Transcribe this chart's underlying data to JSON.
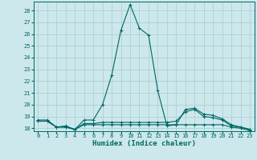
{
  "xlabel": "Humidex (Indice chaleur)",
  "background_color": "#cce8ec",
  "grid_color": "#aacccc",
  "line_color": "#006666",
  "xlim": [
    -0.5,
    23.5
  ],
  "ylim": [
    17.75,
    28.75
  ],
  "yticks": [
    18,
    19,
    20,
    21,
    22,
    23,
    24,
    25,
    26,
    27,
    28
  ],
  "xticks": [
    0,
    1,
    2,
    3,
    4,
    5,
    6,
    7,
    8,
    9,
    10,
    11,
    12,
    13,
    14,
    15,
    16,
    17,
    18,
    19,
    20,
    21,
    22,
    23
  ],
  "series": [
    {
      "x": [
        0,
        1,
        2,
        3,
        4,
        5,
        6,
        7,
        8,
        9,
        10,
        11,
        12,
        13,
        14,
        15,
        16,
        17,
        18,
        19,
        20,
        21,
        22,
        23
      ],
      "y": [
        18.7,
        18.7,
        18.1,
        18.2,
        17.9,
        18.7,
        18.7,
        20.0,
        22.5,
        26.3,
        28.5,
        26.5,
        25.9,
        21.2,
        18.2,
        18.3,
        19.6,
        19.7,
        19.2,
        19.1,
        18.8,
        18.3,
        18.1,
        17.9
      ]
    },
    {
      "x": [
        0,
        1,
        2,
        3,
        4,
        5,
        6,
        7,
        8,
        9,
        10,
        11,
        12,
        13,
        14,
        15,
        16,
        17,
        18,
        19,
        20,
        21,
        22,
        23
      ],
      "y": [
        18.6,
        18.6,
        18.1,
        18.1,
        17.9,
        18.4,
        18.4,
        18.5,
        18.5,
        18.5,
        18.5,
        18.5,
        18.5,
        18.5,
        18.5,
        18.6,
        19.4,
        19.6,
        19.0,
        18.9,
        18.7,
        18.2,
        18.1,
        17.9
      ]
    },
    {
      "x": [
        0,
        1,
        2,
        3,
        4,
        5,
        6,
        7,
        8,
        9,
        10,
        11,
        12,
        13,
        14,
        15,
        16,
        17,
        18,
        19,
        20,
        21,
        22,
        23
      ],
      "y": [
        18.6,
        18.6,
        18.1,
        18.1,
        17.9,
        18.3,
        18.3,
        18.3,
        18.3,
        18.3,
        18.3,
        18.3,
        18.3,
        18.3,
        18.3,
        18.3,
        18.3,
        18.3,
        18.3,
        18.3,
        18.3,
        18.1,
        18.0,
        17.8
      ]
    }
  ],
  "marker": "+",
  "markersize": 3,
  "linewidth": 0.8,
  "tick_fontsize": 5.0,
  "xlabel_fontsize": 6.5
}
